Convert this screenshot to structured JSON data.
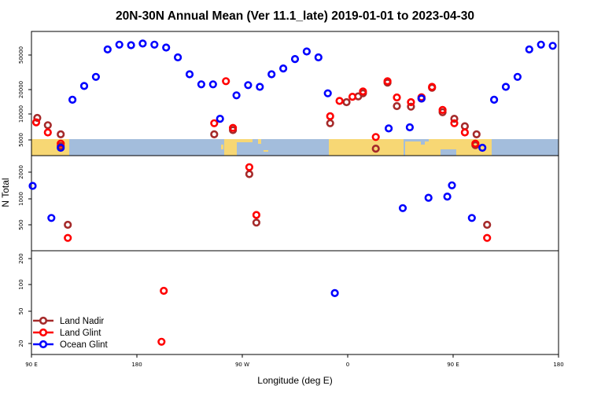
{
  "chart_data": {
    "type": "scatter",
    "title": "20N-30N Annual Mean (Ver 11.1_late)   2019-01-01 to 2023-04-30",
    "xlabel": "Longitude (deg E)",
    "ylabel": "N Total",
    "xlim": [
      90,
      540
    ],
    "x_ticks": [
      {
        "value": 90,
        "label": "90 E"
      },
      {
        "value": 180,
        "label": "180"
      },
      {
        "value": 270,
        "label": "90 W"
      },
      {
        "value": 360,
        "label": "0"
      },
      {
        "value": 450,
        "label": "90 E"
      },
      {
        "value": 540,
        "label": "180"
      }
    ],
    "y_ticks": [
      20,
      50,
      100,
      200,
      500,
      1000,
      2000,
      5000,
      10000,
      20000,
      50000
    ],
    "y_scale": "log",
    "legend_position": "bottom-left",
    "colors": {
      "land_nadir": "#a52a2a",
      "land_glint": "#ff0000",
      "ocean_glint": "#0000ff",
      "map_ocean": "#a3bddc",
      "map_land": "#f7d774"
    },
    "series": [
      {
        "name": "Land Nadir",
        "key": "land_nadir",
        "points": [
          {
            "x": 95,
            "y": 9000
          },
          {
            "x": 104,
            "y": 7400
          },
          {
            "x": 115,
            "y": 5800
          },
          {
            "x": 115,
            "y": 4200
          },
          {
            "x": 121,
            "y": 500
          },
          {
            "x": 246,
            "y": 5800
          },
          {
            "x": 262,
            "y": 6500
          },
          {
            "x": 276,
            "y": 1900
          },
          {
            "x": 282,
            "y": 530
          },
          {
            "x": 345,
            "y": 7800
          },
          {
            "x": 359,
            "y": 14000
          },
          {
            "x": 369,
            "y": 16500
          },
          {
            "x": 373,
            "y": 18000
          },
          {
            "x": 384,
            "y": 3900
          },
          {
            "x": 394,
            "y": 24000
          },
          {
            "x": 402,
            "y": 12500
          },
          {
            "x": 414,
            "y": 12300
          },
          {
            "x": 423,
            "y": 15500
          },
          {
            "x": 432,
            "y": 21000
          },
          {
            "x": 441,
            "y": 10500
          },
          {
            "x": 451,
            "y": 8800
          },
          {
            "x": 460,
            "y": 7200
          },
          {
            "x": 470,
            "y": 5800
          },
          {
            "x": 469,
            "y": 4300
          },
          {
            "x": 479,
            "y": 500
          }
        ]
      },
      {
        "name": "Land Glint",
        "key": "land_glint",
        "points": [
          {
            "x": 94,
            "y": 8000
          },
          {
            "x": 104,
            "y": 6100
          },
          {
            "x": 115,
            "y": 4500
          },
          {
            "x": 121,
            "y": 350
          },
          {
            "x": 201,
            "y": 21
          },
          {
            "x": 203,
            "y": 85
          },
          {
            "x": 246,
            "y": 7800
          },
          {
            "x": 256,
            "y": 25000
          },
          {
            "x": 262,
            "y": 6900
          },
          {
            "x": 276,
            "y": 2300
          },
          {
            "x": 282,
            "y": 650
          },
          {
            "x": 345,
            "y": 9400
          },
          {
            "x": 353,
            "y": 14500
          },
          {
            "x": 364,
            "y": 16300
          },
          {
            "x": 373,
            "y": 19000
          },
          {
            "x": 384,
            "y": 5400
          },
          {
            "x": 394,
            "y": 25000
          },
          {
            "x": 402,
            "y": 16000
          },
          {
            "x": 414,
            "y": 14000
          },
          {
            "x": 423,
            "y": 16100
          },
          {
            "x": 432,
            "y": 21500
          },
          {
            "x": 441,
            "y": 11200
          },
          {
            "x": 451,
            "y": 7800
          },
          {
            "x": 460,
            "y": 6100
          },
          {
            "x": 469,
            "y": 4500
          },
          {
            "x": 479,
            "y": 350
          }
        ]
      },
      {
        "name": "Ocean Glint",
        "key": "ocean_glint",
        "points": [
          {
            "x": 91,
            "y": 1400
          },
          {
            "x": 107,
            "y": 600
          },
          {
            "x": 115,
            "y": 4000
          },
          {
            "x": 125,
            "y": 15000
          },
          {
            "x": 135,
            "y": 22000
          },
          {
            "x": 145,
            "y": 28000
          },
          {
            "x": 155,
            "y": 58000
          },
          {
            "x": 165,
            "y": 66000
          },
          {
            "x": 175,
            "y": 65000
          },
          {
            "x": 185,
            "y": 68000
          },
          {
            "x": 195,
            "y": 66000
          },
          {
            "x": 205,
            "y": 61000
          },
          {
            "x": 215,
            "y": 47000
          },
          {
            "x": 225,
            "y": 30000
          },
          {
            "x": 235,
            "y": 23000
          },
          {
            "x": 245,
            "y": 23000
          },
          {
            "x": 251,
            "y": 8800
          },
          {
            "x": 265,
            "y": 17000
          },
          {
            "x": 275,
            "y": 22500
          },
          {
            "x": 285,
            "y": 21500
          },
          {
            "x": 295,
            "y": 30000
          },
          {
            "x": 305,
            "y": 35000
          },
          {
            "x": 315,
            "y": 45000
          },
          {
            "x": 325,
            "y": 55000
          },
          {
            "x": 335,
            "y": 47000
          },
          {
            "x": 343,
            "y": 18000
          },
          {
            "x": 349,
            "y": 80
          },
          {
            "x": 395,
            "y": 6800
          },
          {
            "x": 407,
            "y": 780
          },
          {
            "x": 413,
            "y": 7000
          },
          {
            "x": 423,
            "y": 15500
          },
          {
            "x": 429,
            "y": 1030
          },
          {
            "x": 445,
            "y": 1060
          },
          {
            "x": 449,
            "y": 1420
          },
          {
            "x": 466,
            "y": 600
          },
          {
            "x": 475,
            "y": 4000
          },
          {
            "x": 485,
            "y": 15000
          },
          {
            "x": 495,
            "y": 21500
          },
          {
            "x": 505,
            "y": 28000
          },
          {
            "x": 515,
            "y": 58000
          },
          {
            "x": 525,
            "y": 66000
          },
          {
            "x": 535,
            "y": 64000
          }
        ]
      }
    ]
  }
}
